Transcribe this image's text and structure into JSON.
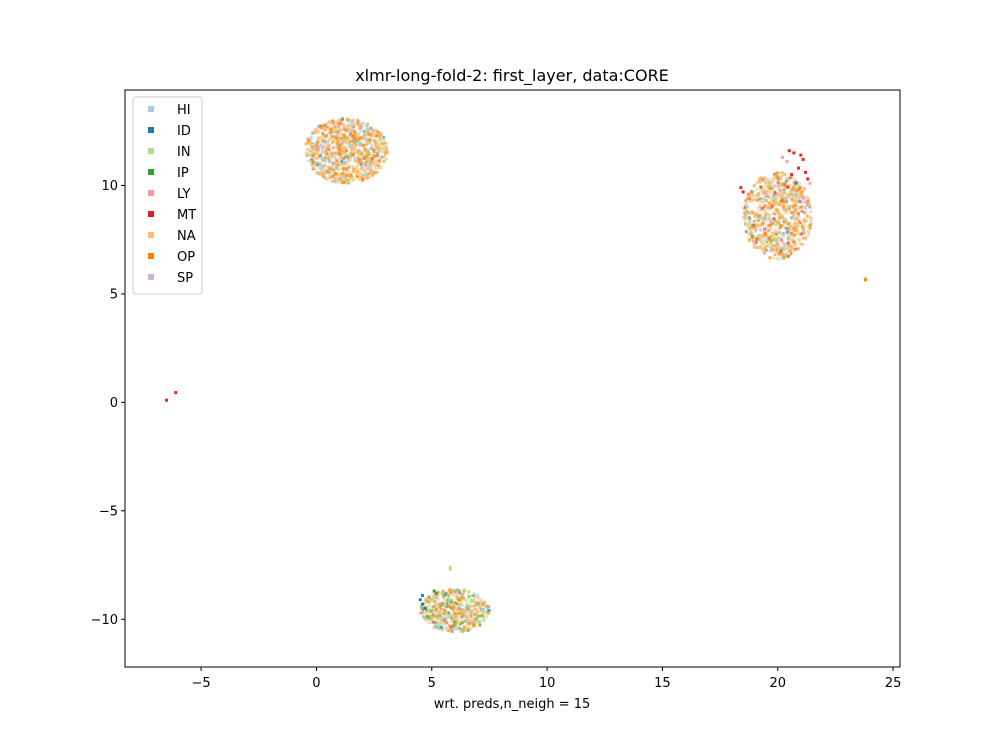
{
  "chart_data": {
    "type": "scatter",
    "title": "xlmr-long-fold-2: first_layer, data:CORE",
    "xlabel": "wrt. preds,n_neigh = 15",
    "ylabel": "",
    "xlim": [
      -8.3,
      25.3
    ],
    "ylim": [
      -12.2,
      14.4
    ],
    "xticks": [
      -5,
      0,
      5,
      10,
      15,
      20,
      25
    ],
    "yticks": [
      -10,
      -5,
      0,
      5,
      10
    ],
    "xtick_labels": [
      "−5",
      "0",
      "5",
      "10",
      "15",
      "20",
      "25"
    ],
    "ytick_labels": [
      "−10",
      "−5",
      "0",
      "5",
      "10"
    ],
    "grid": false,
    "legend_position": "top-left",
    "legend_entries": [
      "HI",
      "ID",
      "IN",
      "IP",
      "LY",
      "MT",
      "NA",
      "OP",
      "SP"
    ],
    "colors": {
      "HI": "#a6cee3",
      "ID": "#1f78b4",
      "IN": "#b2df8a",
      "IP": "#33a02c",
      "LY": "#fb9a99",
      "MT": "#e31a1c",
      "NA": "#fdbf6f",
      "OP": "#ff7f00",
      "SP": "#cab2d6"
    },
    "clusters": [
      {
        "name": "upper-left cluster",
        "center": [
          1.3,
          11.6
        ],
        "spread": [
          1.8,
          1.5
        ],
        "mix": {
          "NA": 0.32,
          "OP": 0.3,
          "HI": 0.14,
          "IN": 0.12,
          "SP": 0.05,
          "LY": 0.04,
          "ID": 0.02,
          "IP": 0.01
        },
        "count": 900
      },
      {
        "name": "right cluster",
        "center": [
          20.0,
          8.6
        ],
        "spread": [
          1.5,
          2.0
        ],
        "mix": {
          "NA": 0.33,
          "OP": 0.25,
          "HI": 0.14,
          "IN": 0.13,
          "LY": 0.05,
          "MT": 0.04,
          "SP": 0.03,
          "ID": 0.02,
          "IP": 0.01
        },
        "count": 800
      },
      {
        "name": "bottom cluster",
        "center": [
          6.0,
          -9.6
        ],
        "spread": [
          1.5,
          1.0
        ],
        "mix": {
          "NA": 0.3,
          "OP": 0.22,
          "IN": 0.17,
          "IP": 0.12,
          "HI": 0.12,
          "ID": 0.05,
          "SP": 0.02
        },
        "count": 500
      }
    ],
    "points": [
      {
        "x": 20.5,
        "y": 11.6,
        "label": "MT"
      },
      {
        "x": 20.7,
        "y": 11.5,
        "label": "MT"
      },
      {
        "x": 21.0,
        "y": 11.4,
        "label": "MT"
      },
      {
        "x": 21.1,
        "y": 11.2,
        "label": "MT"
      },
      {
        "x": 20.9,
        "y": 10.8,
        "label": "MT"
      },
      {
        "x": 21.2,
        "y": 10.6,
        "label": "MT"
      },
      {
        "x": 20.6,
        "y": 10.5,
        "label": "MT"
      },
      {
        "x": 21.3,
        "y": 10.3,
        "label": "MT"
      },
      {
        "x": 18.4,
        "y": 9.9,
        "label": "MT"
      },
      {
        "x": 18.5,
        "y": 9.7,
        "label": "MT"
      },
      {
        "x": 20.2,
        "y": 11.3,
        "label": "LY"
      },
      {
        "x": 20.4,
        "y": 11.1,
        "label": "LY"
      },
      {
        "x": 21.4,
        "y": 10.1,
        "label": "LY"
      },
      {
        "x": 23.8,
        "y": 5.7,
        "label": "NA"
      },
      {
        "x": 23.8,
        "y": 5.65,
        "label": "OP"
      },
      {
        "x": -6.5,
        "y": 0.1,
        "label": "MT"
      },
      {
        "x": -6.1,
        "y": 0.45,
        "label": "MT"
      },
      {
        "x": 5.8,
        "y": -7.6,
        "label": "IN"
      },
      {
        "x": 5.8,
        "y": -7.7,
        "label": "NA"
      },
      {
        "x": 4.5,
        "y": -9.1,
        "label": "ID"
      },
      {
        "x": 4.6,
        "y": -9.3,
        "label": "ID"
      },
      {
        "x": 4.7,
        "y": -9.5,
        "label": "ID"
      },
      {
        "x": 4.6,
        "y": -8.9,
        "label": "ID"
      },
      {
        "x": 5.1,
        "y": -8.7,
        "label": "IP"
      },
      {
        "x": 5.2,
        "y": -8.8,
        "label": "IP"
      }
    ]
  }
}
